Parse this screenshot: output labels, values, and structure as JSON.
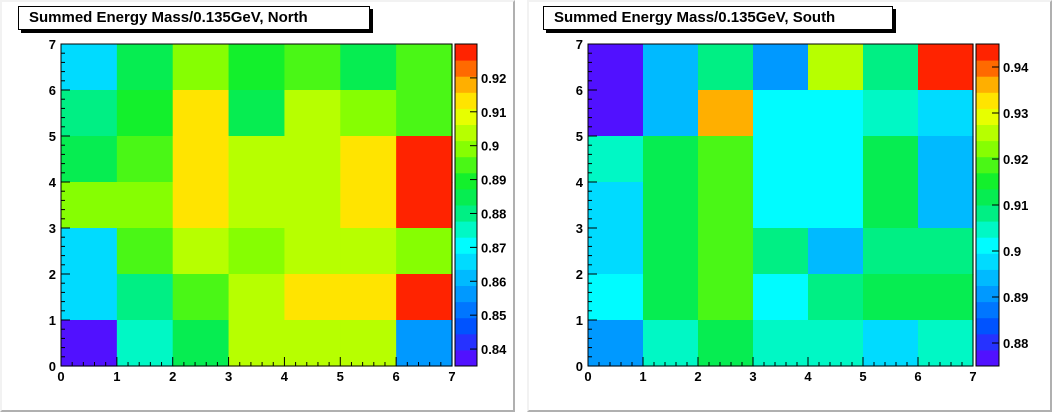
{
  "chart_data": [
    {
      "type": "heatmap",
      "title": "Summed Energy Mass/0.135GeV, North",
      "xlim": [
        0,
        7
      ],
      "ylim": [
        0,
        7
      ],
      "x_ticks": [
        "0",
        "1",
        "2",
        "3",
        "4",
        "5",
        "6",
        "7"
      ],
      "y_ticks": [
        "0",
        "1",
        "2",
        "3",
        "4",
        "5",
        "6",
        "7"
      ],
      "zlim": [
        0.835,
        0.93
      ],
      "z_ticks": [
        "0.84",
        "0.85",
        "0.86",
        "0.87",
        "0.88",
        "0.89",
        "0.9",
        "0.91",
        "0.92"
      ],
      "z_tick_values": [
        0.84,
        0.85,
        0.86,
        0.87,
        0.88,
        0.89,
        0.9,
        0.91,
        0.92
      ],
      "cell_rows_top_to_bottom": [
        [
          0.868,
          0.887,
          0.897,
          0.888,
          0.893,
          0.886,
          0.893
        ],
        [
          0.881,
          0.888,
          0.915,
          0.887,
          0.904,
          0.899,
          0.893
        ],
        [
          0.886,
          0.894,
          0.915,
          0.902,
          0.903,
          0.915,
          0.926
        ],
        [
          0.898,
          0.897,
          0.915,
          0.905,
          0.902,
          0.915,
          0.926
        ],
        [
          0.867,
          0.893,
          0.906,
          0.901,
          0.904,
          0.904,
          0.897
        ],
        [
          0.867,
          0.882,
          0.892,
          0.906,
          0.915,
          0.915,
          0.926
        ],
        [
          0.838,
          0.873,
          0.887,
          0.906,
          0.906,
          0.906,
          0.858
        ]
      ]
    },
    {
      "type": "heatmap",
      "title": "Summed Energy Mass/0.135GeV, South",
      "xlim": [
        0,
        7
      ],
      "ylim": [
        0,
        7
      ],
      "x_ticks": [
        "0",
        "1",
        "2",
        "3",
        "4",
        "5",
        "6",
        "7"
      ],
      "y_ticks": [
        "0",
        "1",
        "2",
        "3",
        "4",
        "5",
        "6",
        "7"
      ],
      "zlim": [
        0.875,
        0.945
      ],
      "z_ticks": [
        "0.88",
        "0.89",
        "0.9",
        "0.91",
        "0.92",
        "0.93",
        "0.94"
      ],
      "z_tick_values": [
        0.88,
        0.89,
        0.9,
        0.91,
        0.92,
        0.93,
        0.94
      ],
      "cell_rows_top_to_bottom": [
        [
          0.877,
          0.894,
          0.909,
          0.89,
          0.926,
          0.909,
          0.943
        ],
        [
          0.877,
          0.894,
          0.937,
          0.902,
          0.902,
          0.906,
          0.899
        ],
        [
          0.905,
          0.913,
          0.917,
          0.902,
          0.902,
          0.91,
          0.895
        ],
        [
          0.899,
          0.913,
          0.917,
          0.902,
          0.902,
          0.91,
          0.895
        ],
        [
          0.899,
          0.913,
          0.917,
          0.909,
          0.894,
          0.907,
          0.907
        ],
        [
          0.902,
          0.913,
          0.917,
          0.902,
          0.907,
          0.91,
          0.91
        ],
        [
          0.89,
          0.906,
          0.912,
          0.904,
          0.904,
          0.899,
          0.906
        ]
      ]
    }
  ]
}
